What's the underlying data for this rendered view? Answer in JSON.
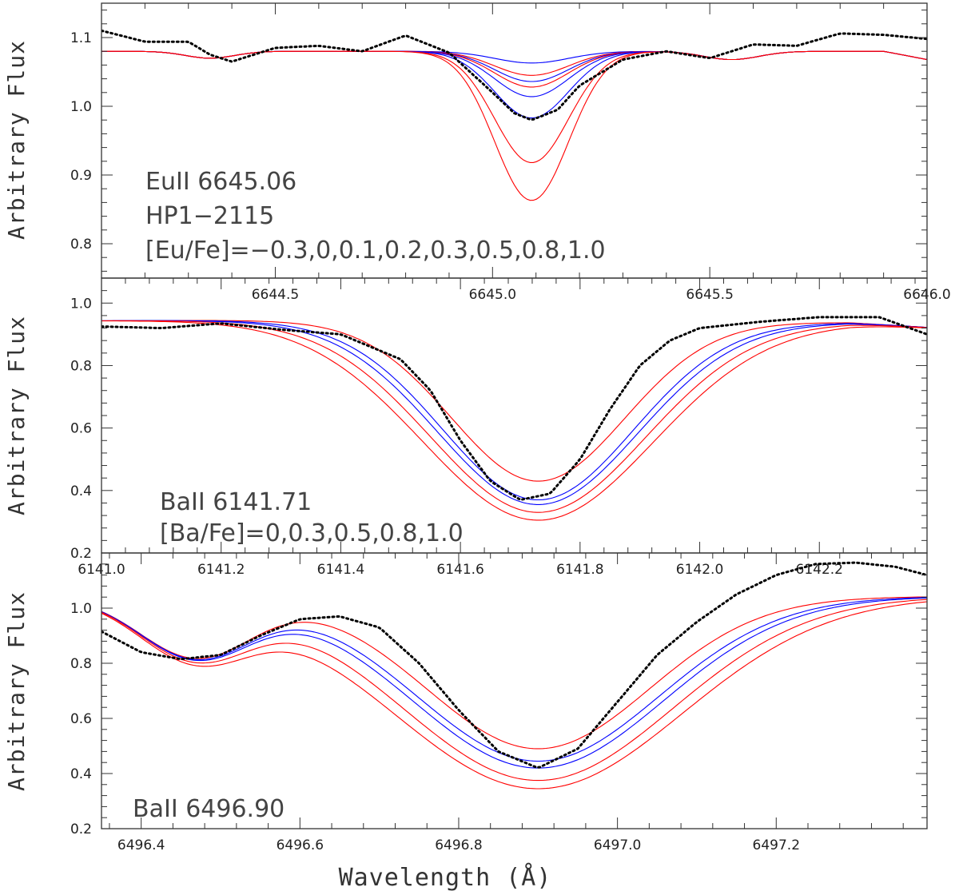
{
  "chart_data": [
    {
      "type": "line",
      "panel": "top",
      "ylabel": "Arbitrary Flux",
      "xlabel": "",
      "xlim": [
        6644.1,
        6646.0
      ],
      "ylim": [
        0.75,
        1.15
      ],
      "xticks": [
        6644.5,
        6645.0,
        6645.5,
        6646.0
      ],
      "xtick_labels": [
        "6644.5",
        "6645.0",
        "6645.5",
        "6646.0"
      ],
      "yticks": [
        0.8,
        0.9,
        1.0,
        1.1
      ],
      "ytick_labels": [
        "0.8",
        "0.9",
        "1.0",
        "1.1"
      ],
      "annotations": [
        "EuII 6645.06",
        "HP1−2115",
        "[Eu/Fe]=−0.3,0,0.1,0.2,0.3,0.5,0.8,1.0"
      ],
      "line_center": 6645.09,
      "line_width": 0.085,
      "series": [
        {
          "name": "[Eu/Fe]=-0.3",
          "color": "#0000ff",
          "depth": 0.017
        },
        {
          "name": "[Eu/Fe]=0",
          "color": "#ff0000",
          "depth": 0.035
        },
        {
          "name": "[Eu/Fe]=0.1",
          "color": "#0000ff",
          "depth": 0.044
        },
        {
          "name": "[Eu/Fe]=0.2",
          "color": "#ff0000",
          "depth": 0.052
        },
        {
          "name": "[Eu/Fe]=0.3",
          "color": "#0000ff",
          "depth": 0.066
        },
        {
          "name": "[Eu/Fe]=0.5",
          "color": "#0000ff",
          "depth": 0.097
        },
        {
          "name": "[Eu/Fe]=0.8",
          "color": "#ff0000",
          "depth": 0.162
        },
        {
          "name": "[Eu/Fe]=1.0",
          "color": "#ff0000",
          "depth": 0.217
        }
      ],
      "observed": {
        "name": "HP1-2115 observed",
        "color": "#000000",
        "x": [
          6644.1,
          6644.2,
          6644.3,
          6644.35,
          6644.4,
          6644.5,
          6644.6,
          6644.7,
          6644.8,
          6644.9,
          6645.0,
          6645.05,
          6645.09,
          6645.15,
          6645.2,
          6645.3,
          6645.4,
          6645.5,
          6645.6,
          6645.7,
          6645.8,
          6645.9,
          6646.0
        ],
        "y": [
          1.11,
          1.094,
          1.094,
          1.075,
          1.065,
          1.085,
          1.088,
          1.08,
          1.103,
          1.078,
          1.02,
          0.99,
          0.98,
          0.995,
          1.03,
          1.068,
          1.08,
          1.07,
          1.09,
          1.088,
          1.106,
          1.104,
          1.098
        ]
      }
    },
    {
      "type": "line",
      "panel": "middle",
      "ylabel": "Arbitrary Flux",
      "xlabel": "",
      "xlim": [
        6141.0,
        6142.38
      ],
      "ylim": [
        0.2,
        1.08
      ],
      "xticks": [
        6141.0,
        6141.2,
        6141.4,
        6141.6,
        6141.8,
        6142.0,
        6142.2
      ],
      "xtick_labels": [
        "6141.0",
        "6141.2",
        "6141.4",
        "6141.6",
        "6141.8",
        "6142.0",
        "6142.2"
      ],
      "yticks": [
        0.2,
        0.4,
        0.6,
        0.8,
        1.0
      ],
      "ytick_labels": [
        "0.2",
        "0.4",
        "0.6",
        "0.8",
        "1.0"
      ],
      "annotations": [
        "BaII 6141.71",
        "[Ba/Fe]=0,0.3,0.5,0.8,1.0"
      ],
      "line_center": 6141.73,
      "series": [
        {
          "name": "[Ba/Fe]=0",
          "color": "#ff0000",
          "min": 0.43,
          "hw": 0.145
        },
        {
          "name": "[Ba/Fe]=0.3",
          "color": "#0000ff",
          "min": 0.37,
          "hw": 0.16
        },
        {
          "name": "[Ba/Fe]=0.5",
          "color": "#0000ff",
          "min": 0.355,
          "hw": 0.168
        },
        {
          "name": "[Ba/Fe]=0.8",
          "color": "#ff0000",
          "min": 0.33,
          "hw": 0.18
        },
        {
          "name": "[Ba/Fe]=1.0",
          "color": "#ff0000",
          "min": 0.305,
          "hw": 0.193
        }
      ],
      "observed": {
        "name": "observed",
        "color": "#000000",
        "x": [
          6141.0,
          6141.1,
          6141.2,
          6141.3,
          6141.4,
          6141.5,
          6141.55,
          6141.6,
          6141.65,
          6141.7,
          6141.75,
          6141.8,
          6141.85,
          6141.9,
          6141.95,
          6142.0,
          6142.1,
          6142.2,
          6142.3,
          6142.38
        ],
        "y": [
          0.925,
          0.92,
          0.935,
          0.915,
          0.9,
          0.82,
          0.72,
          0.56,
          0.43,
          0.37,
          0.39,
          0.5,
          0.66,
          0.8,
          0.88,
          0.92,
          0.94,
          0.955,
          0.955,
          0.9
        ]
      }
    },
    {
      "type": "line",
      "panel": "bottom",
      "ylabel": "Arbitrary Flux",
      "xlabel": "Wavelength (Å)",
      "xlim": [
        6496.35,
        6497.39
      ],
      "ylim": [
        0.2,
        1.2
      ],
      "xticks": [
        6496.4,
        6496.6,
        6496.8,
        6497.0,
        6497.2
      ],
      "xtick_labels": [
        "6496.4",
        "6496.6",
        "6496.8",
        "6497.0",
        "6497.2"
      ],
      "yticks": [
        0.2,
        0.4,
        0.6,
        0.8,
        1.0
      ],
      "ytick_labels": [
        "0.2",
        "0.4",
        "0.6",
        "0.8",
        "1.0"
      ],
      "annotations": [
        "BaII 6496.90"
      ],
      "line_center": 6496.9,
      "series": [
        {
          "name": "[Ba/Fe]=0",
          "color": "#ff0000",
          "min": 0.49,
          "hw": 0.14
        },
        {
          "name": "[Ba/Fe]=0.3",
          "color": "#0000ff",
          "min": 0.445,
          "hw": 0.152
        },
        {
          "name": "[Ba/Fe]=0.5",
          "color": "#0000ff",
          "min": 0.42,
          "hw": 0.158
        },
        {
          "name": "[Ba/Fe]=0.8",
          "color": "#ff0000",
          "min": 0.375,
          "hw": 0.17
        },
        {
          "name": "[Ba/Fe]=1.0",
          "color": "#ff0000",
          "min": 0.345,
          "hw": 0.182
        }
      ],
      "observed": {
        "name": "observed",
        "color": "#000000",
        "x": [
          6496.35,
          6496.4,
          6496.45,
          6496.5,
          6496.55,
          6496.6,
          6496.65,
          6496.7,
          6496.75,
          6496.8,
          6496.85,
          6496.9,
          6496.95,
          6497.0,
          6497.05,
          6497.1,
          6497.15,
          6497.2,
          6497.25,
          6497.3,
          6497.35,
          6497.39
        ],
        "y": [
          0.915,
          0.84,
          0.815,
          0.83,
          0.9,
          0.96,
          0.97,
          0.93,
          0.8,
          0.63,
          0.48,
          0.42,
          0.49,
          0.66,
          0.83,
          0.95,
          1.05,
          1.12,
          1.16,
          1.165,
          1.15,
          1.12
        ]
      }
    }
  ]
}
